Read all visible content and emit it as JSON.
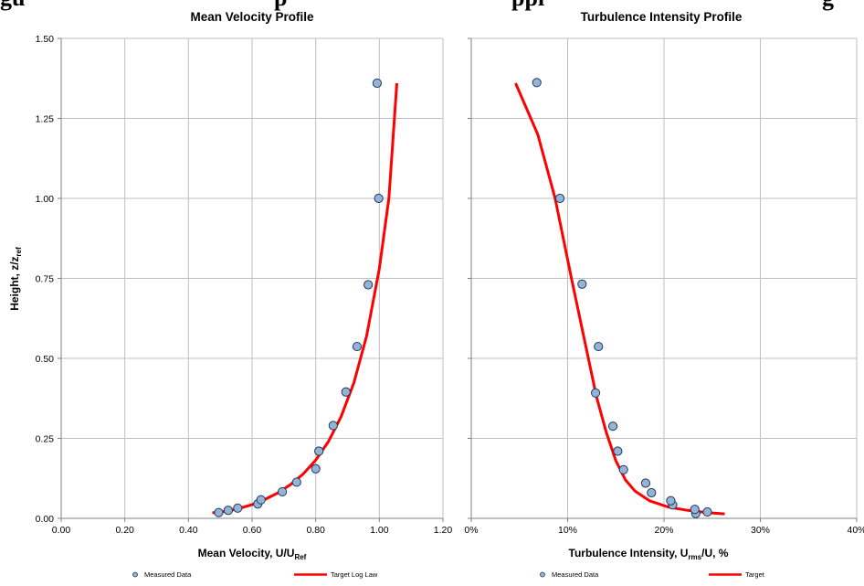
{
  "page": {
    "heading_fragments": [
      "gu",
      "p",
      "ppi",
      "g"
    ]
  },
  "chart_data": [
    {
      "type": "scatter",
      "title": "Mean Velocity Profile",
      "xlabel_main": "Mean Velocity, U/U",
      "xlabel_sub": "Ref",
      "ylabel_main": "Height, z/z",
      "ylabel_sub": "ref",
      "xlim": [
        0.0,
        1.2
      ],
      "ylim": [
        0.0,
        1.5
      ],
      "xticks": [
        "0.00",
        "0.20",
        "0.40",
        "0.60",
        "0.80",
        "1.00",
        "1.20"
      ],
      "xtick_values": [
        0.0,
        0.2,
        0.4,
        0.6,
        0.8,
        1.0,
        1.2
      ],
      "yticks": [
        "0.00",
        "0.25",
        "0.50",
        "0.75",
        "1.00",
        "1.25",
        "1.50"
      ],
      "ytick_values": [
        0.0,
        0.25,
        0.5,
        0.75,
        1.0,
        1.25,
        1.5
      ],
      "grid": true,
      "series": [
        {
          "name": "Measured Data",
          "kind": "markers",
          "color": "#95b3d7",
          "edge_color": "#1f3a5a",
          "points": [
            [
              0.495,
              0.018
            ],
            [
              0.525,
              0.025
            ],
            [
              0.555,
              0.032
            ],
            [
              0.618,
              0.045
            ],
            [
              0.628,
              0.058
            ],
            [
              0.695,
              0.083
            ],
            [
              0.74,
              0.113
            ],
            [
              0.8,
              0.155
            ],
            [
              0.81,
              0.21
            ],
            [
              0.855,
              0.29
            ],
            [
              0.895,
              0.395
            ],
            [
              0.93,
              0.537
            ],
            [
              0.965,
              0.73
            ],
            [
              0.998,
              1.0
            ],
            [
              0.993,
              1.36
            ]
          ]
        },
        {
          "name": "Target Log Law",
          "kind": "line",
          "color": "#ff0000",
          "points": [
            [
              0.475,
              0.017
            ],
            [
              0.52,
              0.022
            ],
            [
              0.56,
              0.031
            ],
            [
              0.6,
              0.043
            ],
            [
              0.64,
              0.059
            ],
            [
              0.68,
              0.079
            ],
            [
              0.72,
              0.105
            ],
            [
              0.76,
              0.138
            ],
            [
              0.8,
              0.182
            ],
            [
              0.84,
              0.24
            ],
            [
              0.88,
              0.318
            ],
            [
              0.92,
              0.424
            ],
            [
              0.96,
              0.57
            ],
            [
              1.0,
              0.78
            ],
            [
              1.03,
              1.0
            ],
            [
              1.055,
              1.36
            ]
          ]
        }
      ],
      "legend": "bottom"
    },
    {
      "type": "scatter",
      "title": "Turbulence Intensity Profile",
      "xlabel_main": "Turbulence Intensity, U",
      "xlabel_sub": "rms",
      "xlabel_tail": "/U, %",
      "xlim": [
        0,
        40
      ],
      "ylim": [
        0.0,
        1.5
      ],
      "xticks": [
        "0%",
        "10%",
        "20%",
        "30%",
        "40%"
      ],
      "xtick_values": [
        0,
        10,
        20,
        30,
        40
      ],
      "ytick_values": [
        0.0,
        0.25,
        0.5,
        0.75,
        1.0,
        1.25,
        1.5
      ],
      "grid": true,
      "series": [
        {
          "name": "Measured Data",
          "kind": "markers",
          "color": "#95b3d7",
          "edge_color": "#1f3a5a",
          "points": [
            [
              24.5,
              0.02
            ],
            [
              23.3,
              0.015
            ],
            [
              23.2,
              0.028
            ],
            [
              20.9,
              0.042
            ],
            [
              20.7,
              0.055
            ],
            [
              18.7,
              0.08
            ],
            [
              18.1,
              0.11
            ],
            [
              15.8,
              0.152
            ],
            [
              15.2,
              0.21
            ],
            [
              14.7,
              0.288
            ],
            [
              12.9,
              0.392
            ],
            [
              13.2,
              0.537
            ],
            [
              11.5,
              0.732
            ],
            [
              9.2,
              1.0
            ],
            [
              6.8,
              1.362
            ]
          ]
        },
        {
          "name": "Target",
          "kind": "line",
          "color": "#ff0000",
          "points": [
            [
              26.3,
              0.014
            ],
            [
              24.5,
              0.018
            ],
            [
              22.5,
              0.025
            ],
            [
              20.5,
              0.035
            ],
            [
              18.5,
              0.055
            ],
            [
              17.0,
              0.085
            ],
            [
              16.0,
              0.12
            ],
            [
              15.0,
              0.18
            ],
            [
              14.0,
              0.27
            ],
            [
              13.0,
              0.38
            ],
            [
              11.8,
              0.55
            ],
            [
              10.4,
              0.75
            ],
            [
              8.7,
              1.0
            ],
            [
              6.9,
              1.2
            ],
            [
              4.6,
              1.36
            ]
          ]
        }
      ],
      "legend": "bottom"
    }
  ]
}
